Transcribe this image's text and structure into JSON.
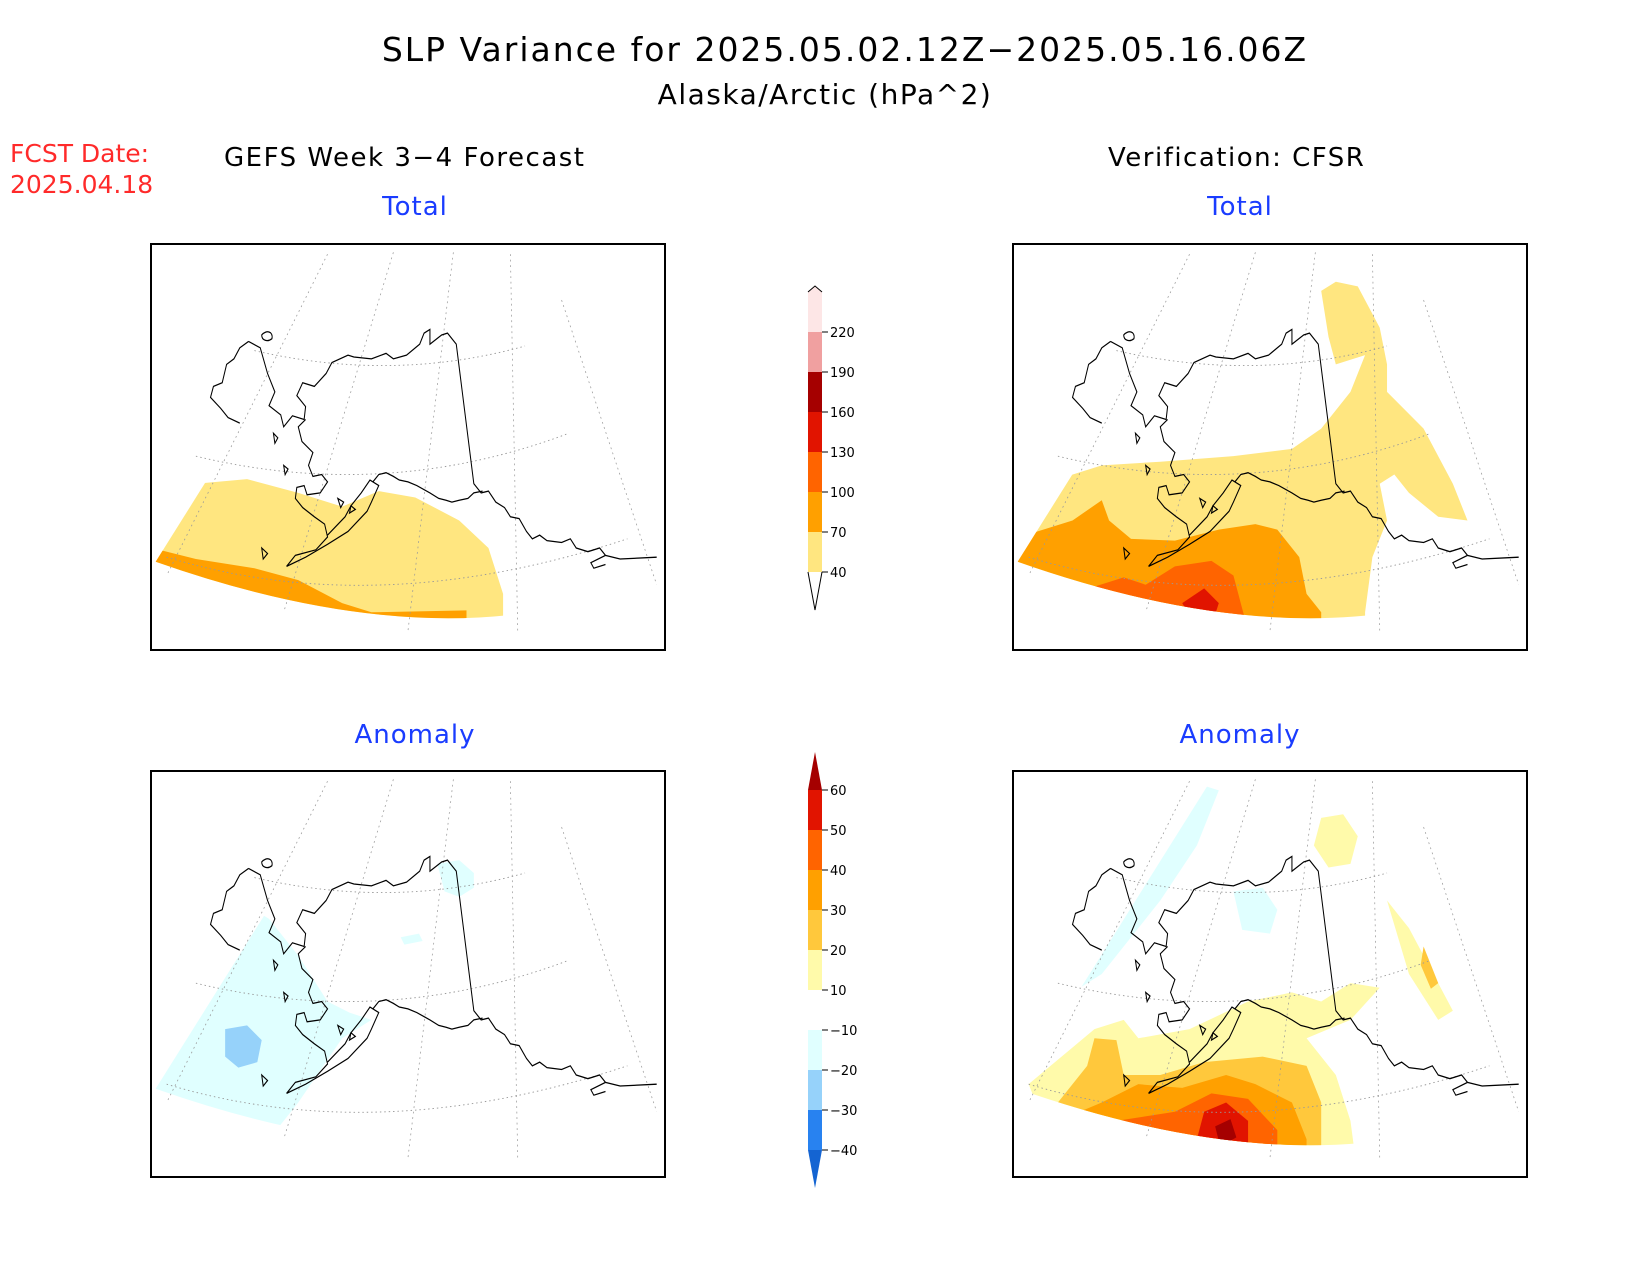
{
  "title": "SLP Variance for 2025.05.02.12Z−2025.05.16.06Z",
  "subtitle": "Alaska/Arctic (hPa^2)",
  "fcst_date_label": "FCST Date:",
  "fcst_date": "2025.04.18",
  "left_column_title": "GEFS Week 3−4 Forecast",
  "right_column_title": "Verification: CFSR",
  "panels": {
    "top_left_label": "Total",
    "top_right_label": "Total",
    "bottom_left_label": "Anomaly",
    "bottom_right_label": "Anomaly"
  },
  "total_colorbar": {
    "levels": [
      "40",
      "70",
      "100",
      "130",
      "160",
      "190",
      "220"
    ],
    "colors": [
      "#ffe680",
      "#ffa000",
      "#ff6400",
      "#e11400",
      "#a50000",
      "#f0a0a0",
      "#fde6e6"
    ]
  },
  "anomaly_colorbar": {
    "levels": [
      "60",
      "50",
      "40",
      "30",
      "20",
      "10",
      "−10",
      "−20",
      "−30",
      "−40"
    ],
    "colors": [
      "#a50000",
      "#e11400",
      "#ff6400",
      "#ffa000",
      "#ffc83c",
      "#fffaaa",
      "#ffffff",
      "#e0ffff",
      "#96d2fa",
      "#2882f0",
      "#1464d2"
    ]
  }
}
